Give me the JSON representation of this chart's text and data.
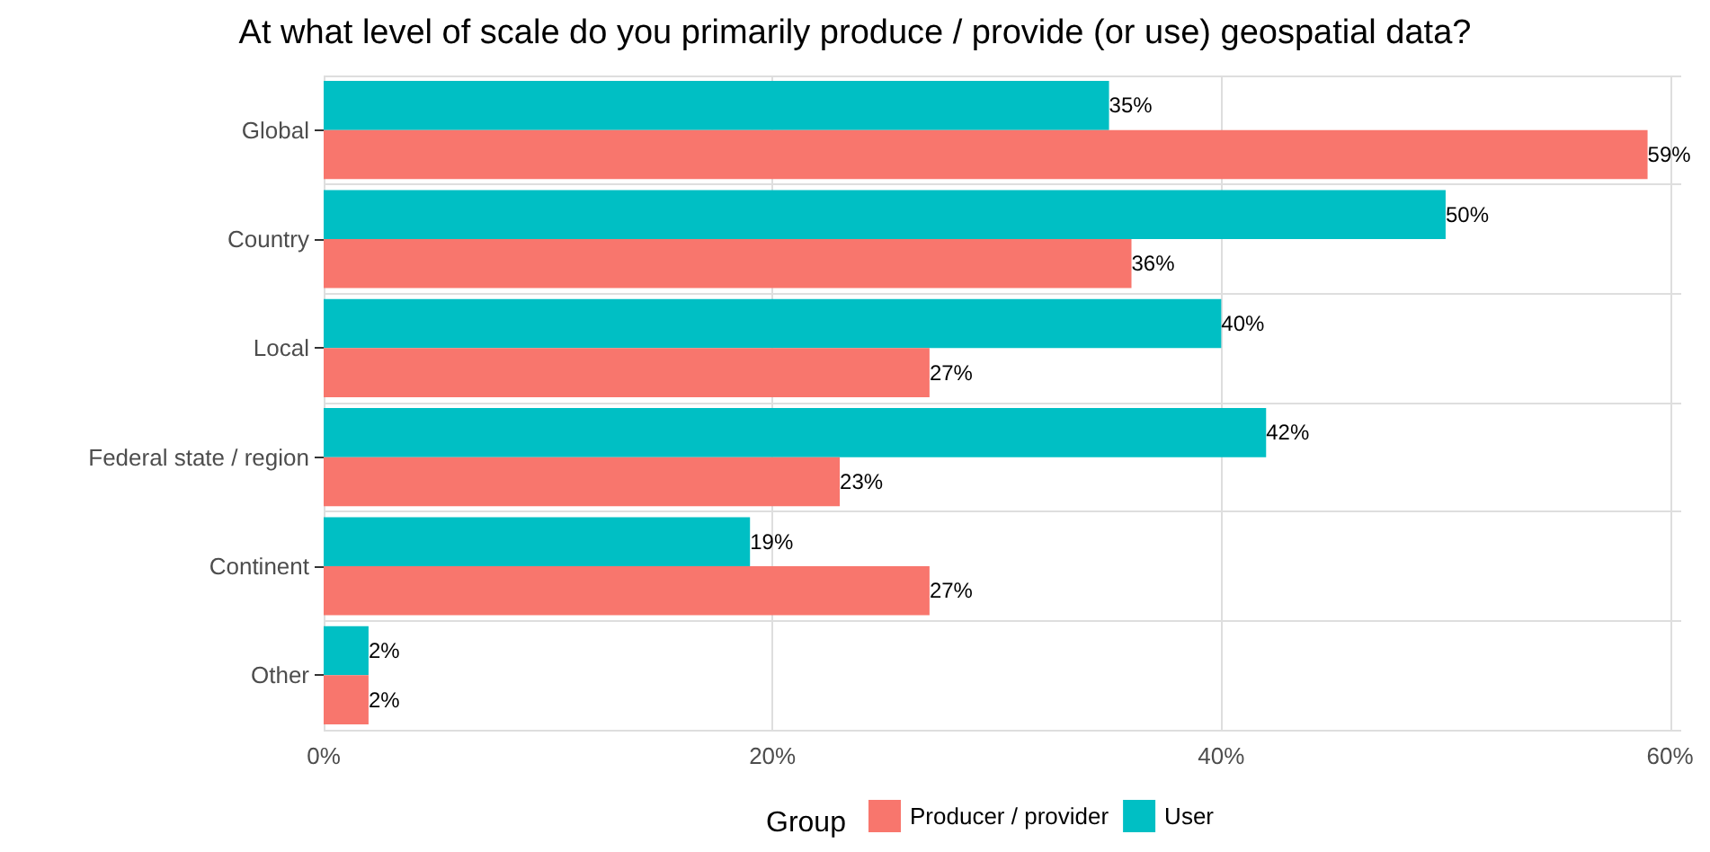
{
  "chart_data": {
    "type": "bar",
    "orientation": "horizontal",
    "title": "At what level of scale do you primarily produce / provide (or use) geospatial data?",
    "categories": [
      "Global",
      "Country",
      "Local",
      "Federal state / region",
      "Continent",
      "Other"
    ],
    "series": [
      {
        "name": "Producer / provider",
        "color": "#f8766d",
        "values": [
          59,
          36,
          27,
          23,
          27,
          2
        ],
        "value_labels": [
          "59%",
          "36%",
          "27%",
          "23%",
          "27%",
          "2%"
        ]
      },
      {
        "name": "User",
        "color": "#00bfc4",
        "values": [
          35,
          50,
          40,
          42,
          19,
          2
        ],
        "value_labels": [
          "35%",
          "50%",
          "40%",
          "42%",
          "19%",
          "2%"
        ]
      }
    ],
    "xlim": [
      0,
      60.5
    ],
    "xticks": [
      {
        "value": 0,
        "label": "0%"
      },
      {
        "value": 20,
        "label": "20%"
      },
      {
        "value": 40,
        "label": "40%"
      },
      {
        "value": 60,
        "label": "60%"
      }
    ],
    "legend_title": "Group",
    "legend": "bottom",
    "grid": true
  }
}
